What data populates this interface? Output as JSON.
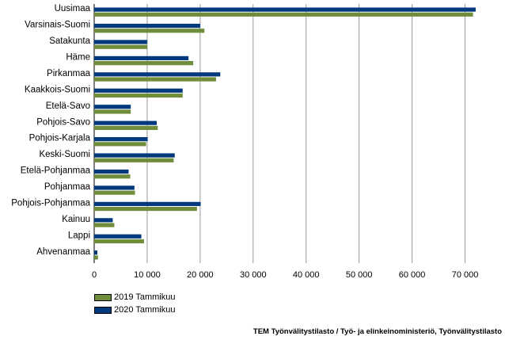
{
  "chart_data": {
    "type": "bar",
    "orientation": "horizontal",
    "categories": [
      "Uusimaa",
      "Varsinais-Suomi",
      "Satakunta",
      "Häme",
      "Pirkanmaa",
      "Kaakkois-Suomi",
      "Etelä-Savo",
      "Pohjois-Savo",
      "Pohjois-Karjala",
      "Keski-Suomi",
      "Etelä-Pohjanmaa",
      "Pohjanmaa",
      "Pohjois-Pohjanmaa",
      "Kainuu",
      "Lappi",
      "Ahvenanmaa"
    ],
    "series": [
      {
        "name": "2020 Tammikuu",
        "color": "#003a7d",
        "values": [
          72000,
          20000,
          10000,
          17800,
          23800,
          16700,
          6900,
          11800,
          10100,
          15200,
          6500,
          7600,
          20100,
          3500,
          8900,
          600
        ]
      },
      {
        "name": "2019 Tammikuu",
        "color": "#6f8d3a",
        "values": [
          71500,
          20800,
          10000,
          18700,
          23000,
          16700,
          6900,
          12000,
          9800,
          15000,
          6800,
          7700,
          19400,
          3800,
          9400,
          700
        ]
      }
    ],
    "xlim": [
      0,
      75000
    ],
    "xticks": [
      0,
      10000,
      20000,
      30000,
      40000,
      50000,
      60000,
      70000
    ],
    "xtick_labels": [
      "0",
      "10 000",
      "20 000",
      "30 000",
      "40 000",
      "50 000",
      "60 000",
      "70 000"
    ],
    "grid": true,
    "legend_position": "bottom-left"
  },
  "legend": [
    {
      "label": "2019 Tammikuu",
      "color": "#6f8d3a"
    },
    {
      "label": "2020 Tammikuu",
      "color": "#003a7d"
    }
  ],
  "source": "TEM Työnvälitystilasto / Työ- ja elinkeinoministeriö, Työnvälitystilasto"
}
